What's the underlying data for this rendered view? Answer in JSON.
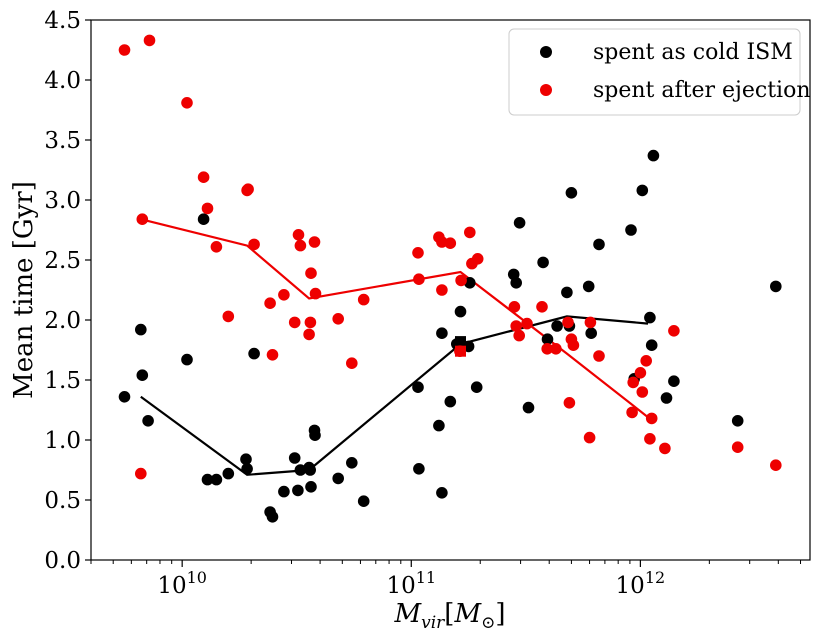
{
  "chart_data": {
    "type": "scatter",
    "title": "",
    "xlabel": "M_vir[M_⊙]",
    "xlabel_main": "M",
    "xlabel_sub": "vir",
    "xlabel_unit_open": "[",
    "xlabel_unit_main": "M",
    "xlabel_unit_sub": "⊙",
    "xlabel_unit_close": "]",
    "ylabel": "Mean time [Gyr]",
    "xscale": "log",
    "xlim": [
      4000000000.0,
      5500000000000.0
    ],
    "ylim": [
      0,
      4.5
    ],
    "yticks": [
      "0.0",
      "0.5",
      "1.0",
      "1.5",
      "2.0",
      "2.5",
      "3.0",
      "3.5",
      "4.0",
      "4.5"
    ],
    "xticks": [
      {
        "value": 10000000000.0,
        "base": "10",
        "exp": "10"
      },
      {
        "value": 100000000000.0,
        "base": "10",
        "exp": "11"
      },
      {
        "value": 1000000000000.0,
        "base": "10",
        "exp": "12"
      }
    ],
    "legend": {
      "position": "top-right",
      "entries": [
        "spent as cold ISM",
        "spent after ejection"
      ]
    },
    "series": [
      {
        "name": "spent as cold ISM",
        "color": "#000000",
        "points": [
          [
            5600000000.0,
            1.36
          ],
          [
            6600000000.0,
            1.92
          ],
          [
            6700000000.0,
            1.54
          ],
          [
            7100000000.0,
            1.16
          ],
          [
            10500000000.0,
            1.67
          ],
          [
            12400000000.0,
            2.84
          ],
          [
            12900000000.0,
            0.67
          ],
          [
            14100000000.0,
            0.67
          ],
          [
            15900000000.0,
            0.72
          ],
          [
            19000000000.0,
            0.84
          ],
          [
            19200000000.0,
            0.76
          ],
          [
            20600000000.0,
            1.72
          ],
          [
            24200000000.0,
            0.4
          ],
          [
            24800000000.0,
            0.36
          ],
          [
            27800000000.0,
            0.57
          ],
          [
            31000000000.0,
            0.85
          ],
          [
            32000000000.0,
            0.58
          ],
          [
            32800000000.0,
            0.75
          ],
          [
            35800000000.0,
            0.77
          ],
          [
            36200000000.0,
            0.75
          ],
          [
            36500000000.0,
            0.61
          ],
          [
            37800000000.0,
            1.08
          ],
          [
            38000000000.0,
            1.04
          ],
          [
            48000000000.0,
            0.68
          ],
          [
            55000000000.0,
            0.81
          ],
          [
            62000000000.0,
            0.49
          ],
          [
            107000000000.0,
            1.44
          ],
          [
            108000000000.0,
            0.76
          ],
          [
            132000000000.0,
            1.12
          ],
          [
            136000000000.0,
            1.89
          ],
          [
            136000000000.0,
            0.56
          ],
          [
            148000000000.0,
            1.32
          ],
          [
            158000000000.0,
            1.8
          ],
          [
            164000000000.0,
            2.07
          ],
          [
            178000000000.0,
            1.78
          ],
          [
            180000000000.0,
            2.31
          ],
          [
            193000000000.0,
            1.44
          ],
          [
            280000000000.0,
            2.38
          ],
          [
            287000000000.0,
            2.31
          ],
          [
            297000000000.0,
            2.81
          ],
          [
            325000000000.0,
            1.27
          ],
          [
            376000000000.0,
            2.48
          ],
          [
            393000000000.0,
            1.84
          ],
          [
            433000000000.0,
            1.95
          ],
          [
            478000000000.0,
            2.23
          ],
          [
            490000000000.0,
            1.95
          ],
          [
            500000000000.0,
            3.06
          ],
          [
            595000000000.0,
            2.28
          ],
          [
            610000000000.0,
            1.89
          ],
          [
            660000000000.0,
            2.63
          ],
          [
            910000000000.0,
            2.75
          ],
          [
            940000000000.0,
            1.51
          ],
          [
            1020000000000.0,
            3.08
          ],
          [
            1100000000000.0,
            2.02
          ],
          [
            1120000000000.0,
            1.79
          ],
          [
            1140000000000.0,
            3.37
          ],
          [
            1300000000000.0,
            1.35
          ],
          [
            1400000000000.0,
            1.49
          ],
          [
            2660000000000.0,
            1.16
          ],
          [
            3900000000000.0,
            2.28
          ]
        ],
        "trend": [
          [
            6600000000.0,
            1.36
          ],
          [
            19200000000.0,
            0.71
          ],
          [
            35800000000.0,
            0.75
          ],
          [
            164000000000.0,
            1.8
          ],
          [
            478000000000.0,
            2.03
          ],
          [
            1080000000000.0,
            1.97
          ]
        ],
        "square": [
          164000000000.0,
          1.82
        ]
      },
      {
        "name": "spent after ejection",
        "color": "#ee0000",
        "points": [
          [
            5600000000.0,
            4.25
          ],
          [
            6600000000.0,
            0.72
          ],
          [
            6700000000.0,
            2.84
          ],
          [
            7200000000.0,
            4.33
          ],
          [
            10500000000.0,
            3.81
          ],
          [
            12400000000.0,
            3.19
          ],
          [
            12900000000.0,
            2.93
          ],
          [
            14100000000.0,
            2.61
          ],
          [
            15900000000.0,
            2.03
          ],
          [
            19200000000.0,
            3.08
          ],
          [
            19400000000.0,
            3.09
          ],
          [
            20600000000.0,
            2.63
          ],
          [
            24200000000.0,
            2.14
          ],
          [
            24800000000.0,
            1.71
          ],
          [
            27800000000.0,
            2.21
          ],
          [
            31000000000.0,
            1.98
          ],
          [
            32200000000.0,
            2.71
          ],
          [
            32800000000.0,
            2.62
          ],
          [
            35800000000.0,
            1.88
          ],
          [
            36300000000.0,
            1.98
          ],
          [
            36500000000.0,
            2.39
          ],
          [
            37800000000.0,
            2.65
          ],
          [
            38200000000.0,
            2.22
          ],
          [
            48000000000.0,
            2.01
          ],
          [
            55000000000.0,
            1.64
          ],
          [
            62000000000.0,
            2.17
          ],
          [
            107000000000.0,
            2.56
          ],
          [
            108000000000.0,
            2.34
          ],
          [
            132000000000.0,
            2.69
          ],
          [
            136000000000.0,
            2.65
          ],
          [
            136000000000.0,
            2.25
          ],
          [
            148000000000.0,
            2.64
          ],
          [
            163000000000.0,
            1.74
          ],
          [
            165000000000.0,
            2.33
          ],
          [
            180000000000.0,
            2.73
          ],
          [
            184000000000.0,
            2.47
          ],
          [
            195000000000.0,
            2.51
          ],
          [
            282000000000.0,
            2.11
          ],
          [
            287000000000.0,
            1.95
          ],
          [
            296000000000.0,
            1.87
          ],
          [
            320000000000.0,
            1.97
          ],
          [
            372000000000.0,
            2.11
          ],
          [
            392000000000.0,
            1.76
          ],
          [
            428000000000.0,
            1.76
          ],
          [
            483000000000.0,
            1.98
          ],
          [
            490000000000.0,
            1.31
          ],
          [
            500000000000.0,
            1.84
          ],
          [
            510000000000.0,
            1.79
          ],
          [
            600000000000.0,
            1.02
          ],
          [
            605000000000.0,
            1.98
          ],
          [
            660000000000.0,
            1.7
          ],
          [
            920000000000.0,
            1.23
          ],
          [
            930000000000.0,
            1.48
          ],
          [
            1000000000000.0,
            1.56
          ],
          [
            1020000000000.0,
            1.4
          ],
          [
            1060000000000.0,
            1.66
          ],
          [
            1100000000000.0,
            1.01
          ],
          [
            1120000000000.0,
            1.18
          ],
          [
            1280000000000.0,
            0.93
          ],
          [
            1400000000000.0,
            1.91
          ],
          [
            2660000000000.0,
            0.94
          ],
          [
            3900000000000.0,
            0.79
          ]
        ],
        "trend": [
          [
            6600000000.0,
            2.84
          ],
          [
            19200000000.0,
            2.62
          ],
          [
            35800000000.0,
            2.18
          ],
          [
            164000000000.0,
            2.4
          ],
          [
            478000000000.0,
            1.72
          ],
          [
            1080000000000.0,
            1.19
          ]
        ],
        "square": [
          164000000000.0,
          1.74
        ]
      }
    ]
  }
}
